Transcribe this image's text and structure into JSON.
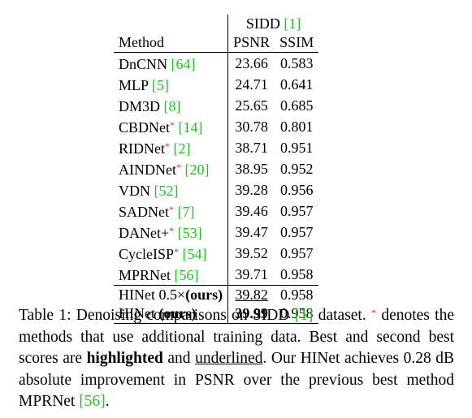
{
  "table": {
    "group_header": "SIDD",
    "group_ref": "[1]",
    "col_method": "Method",
    "col_psnr": "PSNR",
    "col_ssim": "SSIM",
    "rows": [
      {
        "name": "DnCNN ",
        "star": "",
        "ref": "[64]",
        "psnr": "23.66",
        "ssim": "0.583"
      },
      {
        "name": "MLP ",
        "star": "",
        "ref": "[5]",
        "psnr": "24.71",
        "ssim": "0.641"
      },
      {
        "name": "DM3D ",
        "star": "",
        "ref": "[8]",
        "psnr": "25.65",
        "ssim": "0.685"
      },
      {
        "name": "CBDNet",
        "star": "*",
        "ref": "[14]",
        "psnr": "30.78",
        "ssim": "0.801"
      },
      {
        "name": "RIDNet",
        "star": "*",
        "ref": "[2]",
        "psnr": "38.71",
        "ssim": "0.951"
      },
      {
        "name": "AINDNet",
        "star": "*",
        "ref": "[20]",
        "psnr": "38.95",
        "ssim": "0.952"
      },
      {
        "name": "VDN ",
        "star": "",
        "ref": "[52]",
        "psnr": "39.28",
        "ssim": "0.956"
      },
      {
        "name": "SADNet",
        "star": "*",
        "ref": "[7]",
        "psnr": "39.46",
        "ssim": "0.957"
      },
      {
        "name": "DANet+",
        "star": "*",
        "ref": "[53]",
        "psnr": "39.47",
        "ssim": "0.957"
      },
      {
        "name": "CycleISP",
        "star": "*",
        "ref": "[54]",
        "psnr": "39.52",
        "ssim": "0.957"
      },
      {
        "name": "MPRNet ",
        "star": "",
        "ref": "[56]",
        "psnr": "39.71",
        "ssim": "0.958"
      }
    ],
    "ours": [
      {
        "name": "HINet 0.5×",
        "suffix": "(ours)",
        "psnr": "39.82",
        "ssim": "0.958"
      },
      {
        "name": "HINet ",
        "suffix": "(ours)",
        "psnr": "39.99",
        "ssim": "0.958"
      }
    ]
  },
  "caption": {
    "t1": "Table 1: Denoising comparisons on SIDD ",
    "ref1": "[1]",
    "t2": " dataset. ",
    "star": "*",
    "t3": " denotes the methods that use additional training data. Best and second best scores are ",
    "bold_word": "highlighted",
    "t4": " and ",
    "ul_word": "underlined",
    "t5": ". Our HINet achieves 0.28 dB absolute improvement in PSNR over the previous best method MPRNet ",
    "ref2": "[56]",
    "t6": "."
  }
}
